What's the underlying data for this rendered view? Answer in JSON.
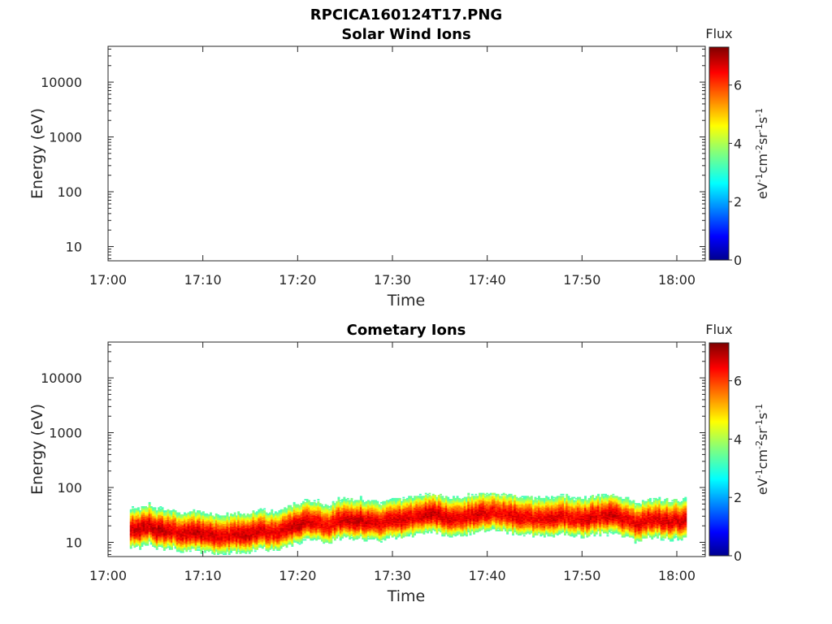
{
  "figure_title": "RPCICA160124T17.PNG",
  "chart_data": [
    {
      "type": "heatmap",
      "title": "Solar Wind Ions",
      "xlabel": "Time",
      "ylabel": "Energy (eV)",
      "x_ticks": [
        "17:00",
        "17:10",
        "17:20",
        "17:30",
        "17:40",
        "17:50",
        "18:00"
      ],
      "x_range_minutes": [
        0,
        63
      ],
      "y_scale": "log",
      "y_ticks": [
        "10",
        "100",
        "1000",
        "10000"
      ],
      "y_range": [
        5.5,
        45000
      ],
      "colorbar": {
        "title": "Flux",
        "label": "eV-1cm-2sr-1s-1",
        "ticks": [
          "0",
          "2",
          "4",
          "6"
        ],
        "range": [
          0,
          7.3
        ],
        "colormap": "jet"
      },
      "data_present": false
    },
    {
      "type": "heatmap",
      "title": "Cometary Ions",
      "xlabel": "Time",
      "ylabel": "Energy (eV)",
      "x_ticks": [
        "17:00",
        "17:10",
        "17:20",
        "17:30",
        "17:40",
        "17:50",
        "18:00"
      ],
      "x_range_minutes": [
        0,
        63
      ],
      "y_scale": "log",
      "y_ticks": [
        "10",
        "100",
        "1000",
        "10000"
      ],
      "y_range": [
        5.5,
        45000
      ],
      "colorbar": {
        "title": "Flux",
        "label": "eV-1cm-2sr-1s-1",
        "ticks": [
          "0",
          "2",
          "4",
          "6"
        ],
        "range": [
          0,
          7.3
        ],
        "colormap": "jet"
      },
      "data_present": true,
      "data_time_range_minutes": [
        2.3,
        61.0
      ],
      "band_center_eV": [
        18,
        17,
        20,
        16,
        17,
        15,
        14,
        15,
        14,
        13,
        13,
        14,
        14,
        15,
        16,
        15,
        16,
        18,
        22,
        24,
        22,
        20,
        24,
        26,
        25,
        24,
        22,
        24,
        26,
        25,
        28,
        30,
        34,
        30,
        28,
        27,
        30,
        33,
        35,
        34,
        32,
        30,
        28,
        26,
        27,
        28,
        30,
        27,
        26,
        28,
        30,
        32,
        29,
        24,
        22,
        25,
        26,
        24,
        25,
        24
      ],
      "band_peak_flux": [
        6.6,
        6.8,
        6.7,
        6.9,
        6.6,
        6.5,
        6.7,
        6.8,
        6.6,
        6.7,
        6.5,
        6.6,
        6.8,
        6.7,
        6.6,
        6.5,
        6.6,
        6.7,
        6.8,
        6.6,
        6.5,
        6.4,
        6.6,
        6.7,
        6.8,
        6.7,
        6.6,
        6.5,
        6.6,
        6.7,
        6.5,
        6.6,
        6.8,
        6.7,
        6.6,
        6.5,
        6.6,
        6.7,
        6.5,
        6.4,
        6.5,
        6.6,
        6.5,
        6.4,
        6.5,
        6.6,
        6.5,
        6.4,
        6.6,
        6.7,
        6.5,
        6.8,
        6.6,
        6.5,
        6.6,
        6.5,
        6.6,
        6.7,
        6.6,
        6.7
      ],
      "band_upper_cutoff_eV": 80,
      "band_lower_cutoff_eV": 6
    }
  ]
}
